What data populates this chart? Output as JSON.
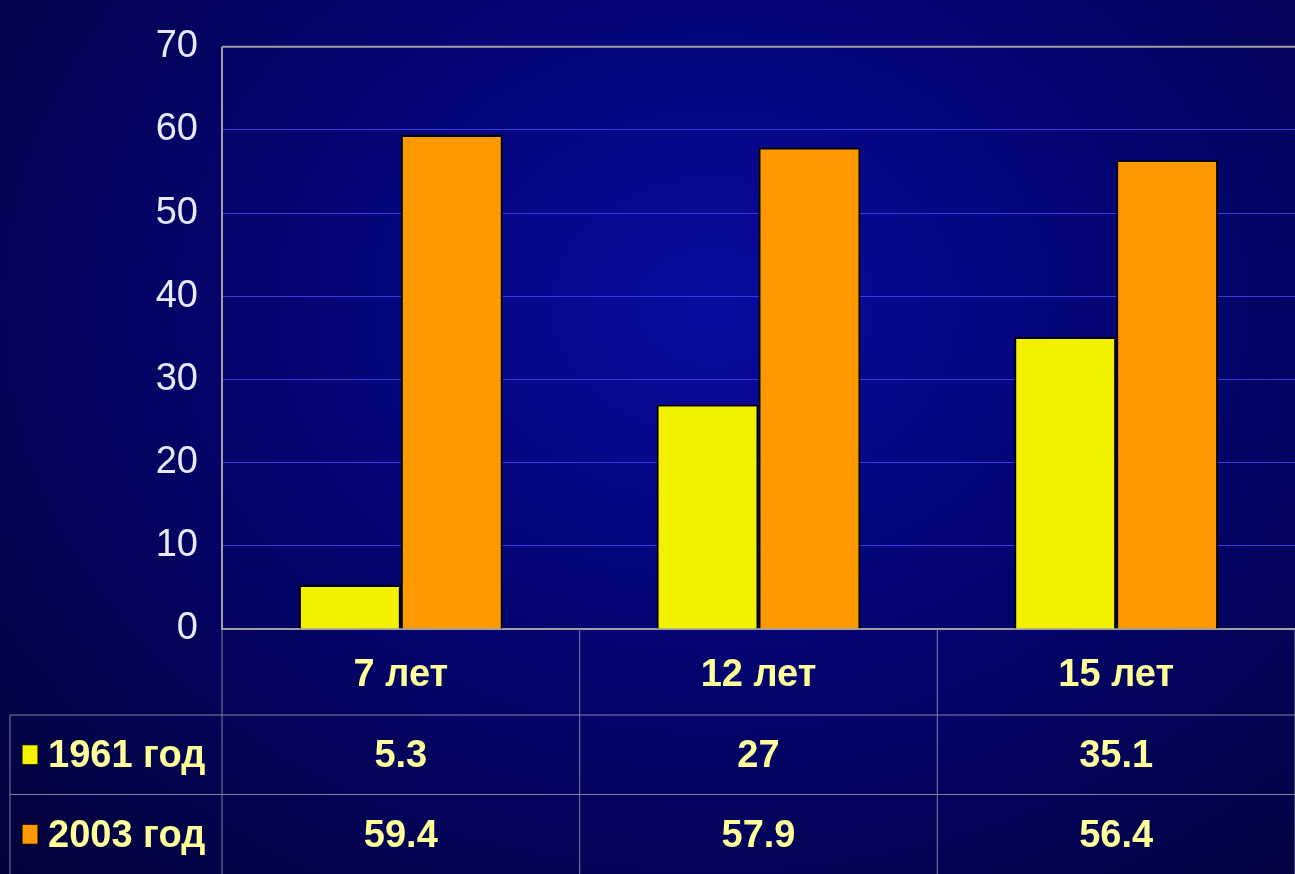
{
  "chart_data": {
    "type": "bar",
    "categories": [
      "7 лет",
      "12 лет",
      "15 лет"
    ],
    "series": [
      {
        "name": "1961 год",
        "color": "#f2f200",
        "values": [
          5.3,
          27,
          35.1
        ]
      },
      {
        "name": "2003 год",
        "color": "#ff9900",
        "values": [
          59.4,
          57.9,
          56.4
        ]
      }
    ],
    "ylim": [
      0,
      70
    ],
    "yticks": [
      0,
      10,
      20,
      30,
      40,
      50,
      60,
      70
    ],
    "grid": "y",
    "legend": "bottom",
    "data_labels": true
  }
}
